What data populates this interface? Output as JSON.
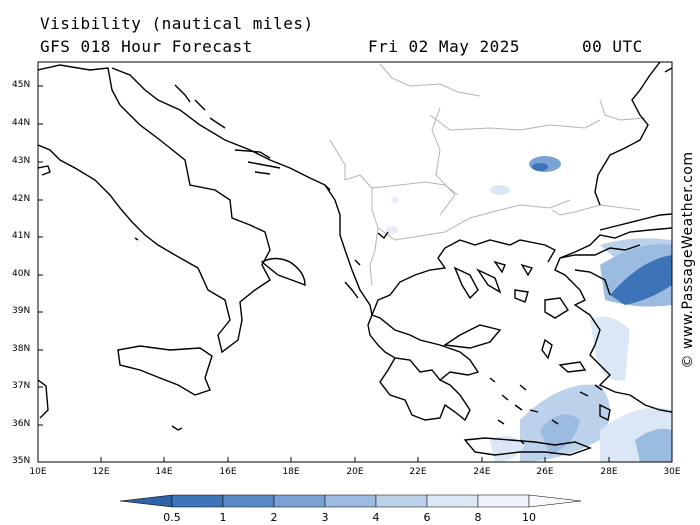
{
  "header": {
    "line1": "Visibility (nautical miles)",
    "model_line": "GFS 018 Hour Forecast",
    "date": "Fri 02 May 2025",
    "time": "00 UTC"
  },
  "map": {
    "lat_labels": [
      "45N",
      "44N",
      "43N",
      "42N",
      "41N",
      "40N",
      "39N",
      "38N",
      "37N",
      "36N",
      "35N"
    ],
    "lon_labels": [
      "10E",
      "12E",
      "14E",
      "16E",
      "18E",
      "20E",
      "22E",
      "24E",
      "26E",
      "28E",
      "30E"
    ],
    "lat_range": [
      35,
      45.6
    ],
    "lon_range": [
      10,
      30
    ],
    "colors": {
      "coast": "#000000",
      "borders": "#b4b4b4",
      "fog_light": "#cfe0f0",
      "fog_mid": "#a8c6e6",
      "fog_dark": "#4f86c4"
    }
  },
  "colorbar": {
    "labels": [
      "0.5",
      "1",
      "2",
      "3",
      "4",
      "6",
      "8",
      "10"
    ],
    "colors": [
      "#2f63a8",
      "#3d74b8",
      "#5a8ac6",
      "#7aa2d4",
      "#9cbbe0",
      "#bcd2ea",
      "#dbe7f4",
      "#f2f6fb"
    ]
  },
  "copyright": "© www.PassageWeather.com"
}
